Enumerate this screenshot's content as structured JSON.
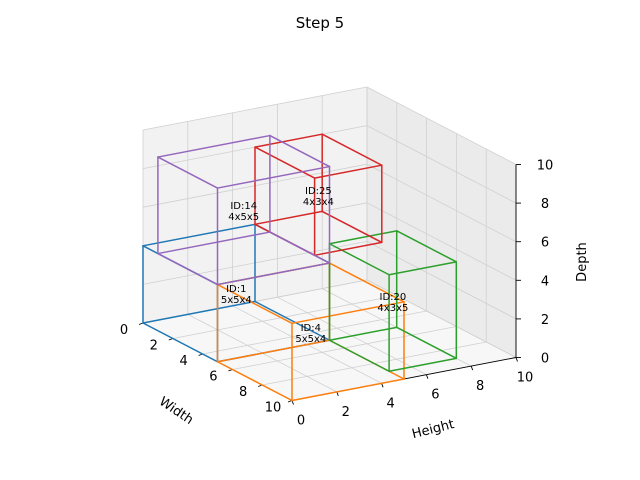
{
  "chart_data": {
    "type": "3d-wireframe-boxes",
    "title": "Step 5",
    "xlabel": "Width",
    "ylabel": "Height",
    "zlabel": "Depth",
    "xlim": [
      0,
      10
    ],
    "ylim": [
      0,
      10
    ],
    "zlim": [
      0,
      10
    ],
    "x_ticks": [
      "0",
      "2",
      "4",
      "6",
      "8",
      "10"
    ],
    "y_ticks": [
      "0",
      "2",
      "4",
      "6",
      "8",
      "10"
    ],
    "z_ticks": [
      "0",
      "2",
      "4",
      "6",
      "8",
      "10"
    ],
    "grid": true,
    "boxes": [
      {
        "id": "ID:1",
        "size": "5x5x4",
        "origin": [
          0,
          0,
          0
        ],
        "dims": [
          5,
          5,
          4
        ],
        "color": "#1f77b4"
      },
      {
        "id": "ID:4",
        "size": "5x5x4",
        "origin": [
          5,
          0,
          0
        ],
        "dims": [
          5,
          5,
          4
        ],
        "color": "#ff7f0e"
      },
      {
        "id": "ID:20",
        "size": "4x3x5",
        "origin": [
          5,
          5,
          0
        ],
        "dims": [
          4,
          3,
          5
        ],
        "color": "#2ca02c"
      },
      {
        "id": "ID:25",
        "size": "4x3x4",
        "origin": [
          0,
          5,
          4
        ],
        "dims": [
          4,
          3,
          4
        ],
        "color": "#d62728"
      },
      {
        "id": "ID:14",
        "size": "4x5x5",
        "origin": [
          1,
          0,
          4
        ],
        "dims": [
          4,
          5,
          5
        ],
        "color": "#9467bd"
      }
    ]
  }
}
